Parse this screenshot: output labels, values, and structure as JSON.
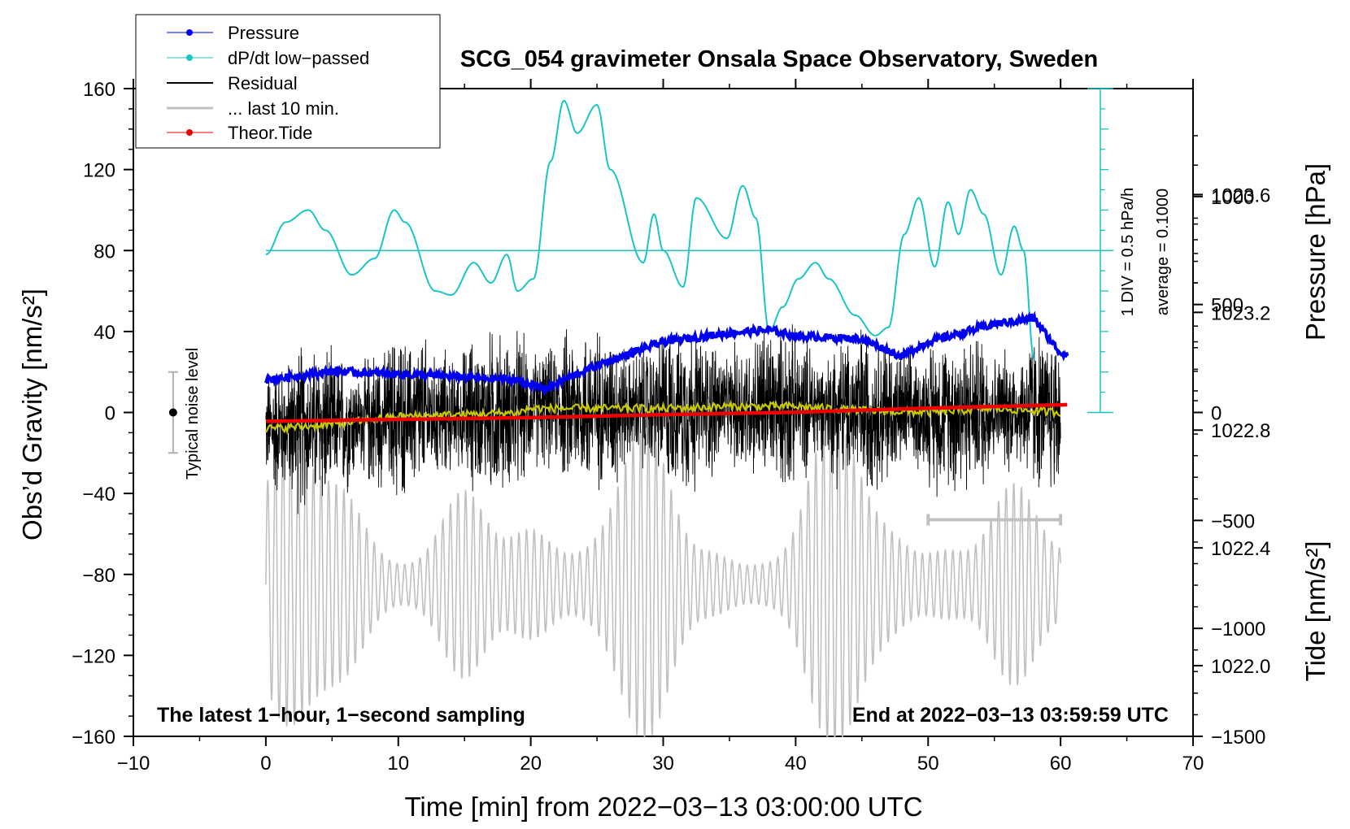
{
  "chart_data": {
    "type": "line",
    "title": "SCG_054 gravimeter Onsala Space Observatory, Sweden",
    "xlabel": "Time [min] from 2022−03−13 03:00:00 UTC",
    "ylabel_left": "Obs’d Gravity [nm/s²]",
    "ylabel_right_pressure": "Pressure [hPa]",
    "ylabel_right_tide": "Tide [nm/s²]",
    "xlim": [
      -10,
      70
    ],
    "ylim": [
      -160,
      160
    ],
    "x_ticks": [
      "−10",
      "0",
      "10",
      "20",
      "30",
      "40",
      "50",
      "60",
      "70"
    ],
    "x_tick_values": [
      -10,
      0,
      10,
      20,
      30,
      40,
      50,
      60,
      70
    ],
    "y_ticks": [
      "160",
      "120",
      "80",
      "40",
      "0",
      "−40",
      "−80",
      "−120",
      "−160"
    ],
    "y_tick_values": [
      160,
      120,
      80,
      40,
      0,
      -40,
      -80,
      -120,
      -160
    ],
    "pressure_axis": {
      "range_hPa": [
        1021.76,
        1023.96
      ],
      "ticks": [
        "1022.0",
        "1022.4",
        "1022.8",
        "1023.2",
        "1023.6"
      ],
      "tick_values": [
        1022.0,
        1022.4,
        1022.8,
        1023.2,
        1023.6
      ]
    },
    "tide_axis": {
      "range": [
        -1500,
        1500
      ],
      "visible_range": [
        -1500,
        1000
      ],
      "ticks": [
        "1000",
        "500",
        "0",
        "−500",
        "−1000",
        "−1500"
      ],
      "tick_values": [
        1000,
        500,
        0,
        -500,
        -1000,
        -1500
      ]
    },
    "legend": [
      "Pressure",
      "dP/dt low−passed",
      "Residual",
      "... last 10 min.",
      "Theor.Tide"
    ],
    "series": [
      {
        "name": "Pressure",
        "color": "#0000ee",
        "unit": "hPa",
        "x": [
          0,
          5,
          10,
          15,
          19,
          21,
          25,
          30,
          35,
          38,
          40,
          45,
          48,
          50,
          55,
          58,
          60
        ],
        "values": [
          1022.97,
          1023.0,
          1022.99,
          1022.98,
          1022.97,
          1022.94,
          1023.02,
          1023.1,
          1023.13,
          1023.14,
          1023.12,
          1023.11,
          1023.05,
          1023.1,
          1023.16,
          1023.18,
          1023.06
        ]
      },
      {
        "name": "dP/dt low−passed",
        "color": "#19c5c5",
        "unit": "hPa/h",
        "x": [
          0,
          1.5,
          3.2,
          4.5,
          6.5,
          8.2,
          9.7,
          10.5,
          12.8,
          14,
          15.7,
          17,
          18.2,
          19,
          20.2,
          21.5,
          22.5,
          23.5,
          25,
          26,
          28.5,
          29.3,
          30,
          31.5,
          32.5,
          34.8,
          36,
          37,
          38,
          39,
          40.2,
          41.5,
          42.5,
          44.5,
          46,
          47,
          48.2,
          49.3,
          50.5,
          51.5,
          52.3,
          53.2,
          54.2,
          55.5,
          56.5,
          57.2,
          58
        ],
        "values": [
          0.05,
          0.45,
          0.6,
          0.35,
          -0.2,
          0.0,
          0.6,
          0.45,
          -0.4,
          -0.45,
          -0.05,
          -0.3,
          0.05,
          -0.4,
          -0.25,
          1.2,
          1.95,
          1.55,
          1.9,
          1.1,
          -0.05,
          0.55,
          0.1,
          -0.35,
          0.75,
          0.25,
          0.9,
          0.5,
          -0.9,
          -0.6,
          -0.25,
          -0.05,
          -0.25,
          -0.7,
          -0.95,
          -0.85,
          0.3,
          0.75,
          -0.1,
          0.7,
          0.3,
          0.85,
          0.55,
          -0.2,
          0.4,
          0.1,
          -1.25
        ],
        "reference_line": 0.1
      },
      {
        "name": "Residual",
        "color": "#000000",
        "unit": "nm/s²",
        "x": [
          0,
          5,
          10,
          15,
          19,
          20,
          25,
          30,
          35,
          40,
          45,
          50,
          55,
          60
        ],
        "values": [
          -8,
          -6,
          -2,
          -1,
          0,
          2,
          2,
          2,
          3,
          3,
          1,
          0,
          2,
          0
        ]
      },
      {
        "name": "... last 10 min.",
        "color": "#c0c0c0",
        "unit": "nm/s²",
        "x_range_overlay": [
          50,
          60
        ]
      },
      {
        "name": "Theor.Tide",
        "color": "#ee0000",
        "unit": "nm/s²",
        "x": [
          0,
          10,
          20,
          30,
          40,
          50,
          60.5
        ],
        "values": [
          -41,
          -32,
          -24,
          -10,
          1,
          20,
          36
        ]
      }
    ],
    "dpdt_scale_note": "1 DIV = 0.5 hPa/h",
    "dpdt_average_note": "average = 0.1000",
    "noise_bar": {
      "x": -7,
      "center": 0,
      "low": -20,
      "high": 20,
      "label": "Typical noise level"
    },
    "last10_bar": {
      "x_start": 50,
      "x_end": 60
    },
    "annotation_left": "The latest 1−hour, 1−second sampling",
    "annotation_right": "End at 2022−03−13 03:59:59 UTC",
    "colors": {
      "pressure": "#0000ee",
      "dpdt": "#19c5c5",
      "residual": "#000000",
      "residual_smooth": "#c8c800",
      "last10": "#c0c0c0",
      "tide": "#ee0000"
    }
  }
}
